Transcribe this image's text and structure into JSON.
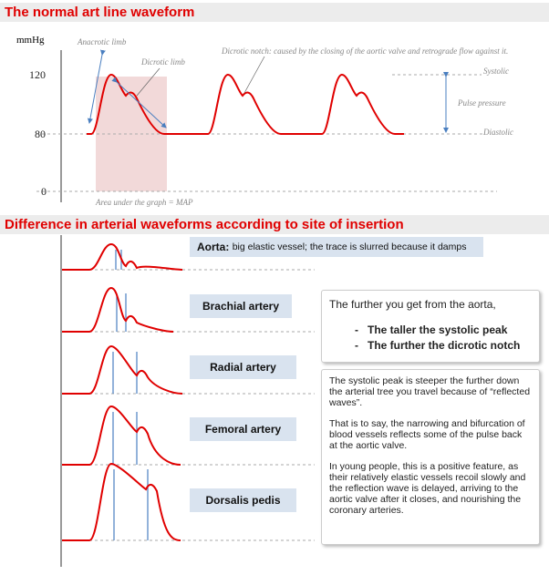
{
  "header": {
    "title": "The normal art line waveform"
  },
  "chart": {
    "y_axis_label": "mmHg",
    "ticks": [
      "120",
      "80",
      "0"
    ],
    "annotations": {
      "anacrotic": "Anacrotic limb",
      "dicrotic_limb": "Dicrotic limb",
      "dicrotic_notch": "Dicrotic notch: caused by the closing of the aortic valve and retrograde flow against it.",
      "systolic": "Systolic",
      "pulse_pressure": "Pulse pressure",
      "diastolic": "Diastolic",
      "area": "Area under the graph = MAP"
    }
  },
  "section2": {
    "title": "Difference in arterial waveforms according to site of insertion",
    "sites": [
      {
        "label": "Aorta:",
        "description": "big elastic vessel; the trace is slurred because it damps"
      },
      {
        "label": "Brachial artery"
      },
      {
        "label": "Radial artery"
      },
      {
        "label": "Femoral artery"
      },
      {
        "label": "Dorsalis pedis"
      }
    ],
    "summary": {
      "intro": "The further you get from the aorta,",
      "bullets": [
        "The taller the systolic peak",
        "The further the dicrotic notch"
      ]
    },
    "explanation": [
      "The systolic peak is steeper the further down the arterial tree you travel because of “reflected waves”.",
      "That is to say, the narrowing and bifurcation of blood vessels reflects some of the pulse back at the aortic valve.",
      "In young people, this is a positive feature, as their relatively elastic vessels recoil slowly and the reflection wave is delayed, arriving to the aortic valve after it closes, and nourishing the coronary arteries."
    ]
  }
}
